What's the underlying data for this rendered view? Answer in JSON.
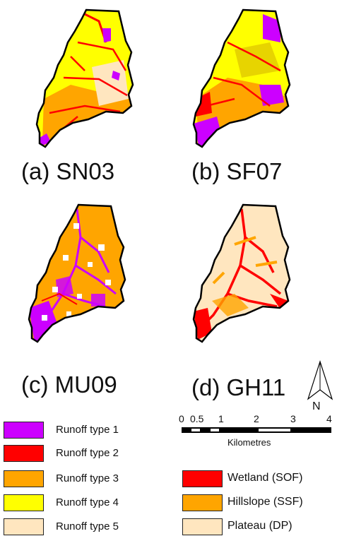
{
  "panels": [
    {
      "id": "a",
      "label": "(a) SN03",
      "dominant": "runoff_type_4"
    },
    {
      "id": "b",
      "label": "(b) SF07",
      "dominant": "runoff_type_4"
    },
    {
      "id": "c",
      "label": "(c) MU09",
      "dominant": "runoff_type_3"
    },
    {
      "id": "d",
      "label": "(d) GH11",
      "dominant": "plateau_dp"
    }
  ],
  "legend_runoff": [
    {
      "label": "Runoff type 1",
      "color": "#cc00ff"
    },
    {
      "label": "Runoff type 2",
      "color": "#ff0000"
    },
    {
      "label": "Runoff type 3",
      "color": "#ffa500"
    },
    {
      "label": "Runoff type 4",
      "color": "#ffff00"
    },
    {
      "label": "Runoff type 5",
      "color": "#ffe6bf"
    }
  ],
  "legend_landscape": [
    {
      "label": "Wetland (SOF)",
      "color": "#ff0000"
    },
    {
      "label": "Hillslope (SSF)",
      "color": "#ffa500"
    },
    {
      "label": "Plateau (DP)",
      "color": "#ffe6bf"
    }
  ],
  "scale_bar": {
    "ticks": [
      "0",
      "0.5",
      "1",
      "2",
      "3",
      "4"
    ],
    "unit": "Kilometres"
  },
  "north_arrow": {
    "label": "N"
  }
}
